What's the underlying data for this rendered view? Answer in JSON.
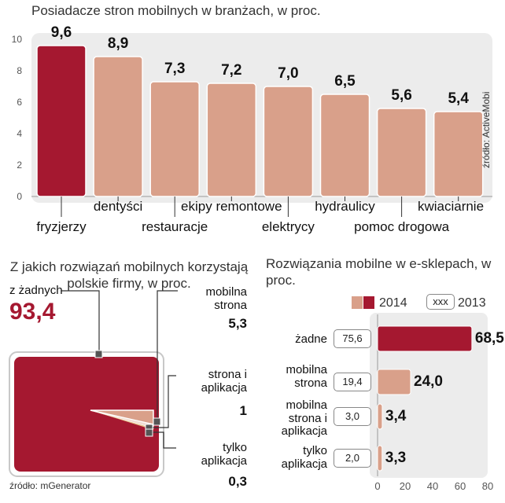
{
  "chart_data": [
    {
      "type": "bar",
      "title": "Posiadacze stron mobilnych w branżach, w proc.",
      "source": "źródło: ActiveMobi",
      "categories": [
        "fryzjerzy",
        "dentyści",
        "restauracje",
        "ekipy remontowe",
        "elektrycy",
        "hydraulicy",
        "pomoc drogowa",
        "kwiaciarnie"
      ],
      "values": [
        9.6,
        8.9,
        7.3,
        7.2,
        7.0,
        6.5,
        5.6,
        5.4
      ],
      "value_labels": [
        "9,6",
        "8,9",
        "7,3",
        "7,2",
        "7,0",
        "6,5",
        "5,6",
        "5,4"
      ],
      "yticks": [
        "0",
        "2",
        "4",
        "6",
        "8",
        "10"
      ],
      "ylim": [
        0,
        10
      ],
      "grid": false,
      "colors": {
        "highlight": "#a51830",
        "bar": "#d9a08a"
      }
    },
    {
      "type": "pie",
      "title": "Z jakich rozwiązań mobilnych korzystają polskie firmy, w proc.",
      "source": "źródło: mGenerator",
      "slices": [
        {
          "label": "z żadnych",
          "value": 93.4,
          "value_label": "93,4",
          "color": "#a51830"
        },
        {
          "label": "mobilna strona",
          "value": 5.3,
          "value_label": "5,3",
          "color": "#d9a08a"
        },
        {
          "label": "strona i aplikacja",
          "value": 1,
          "value_label": "1",
          "color": "#f1ddd2"
        },
        {
          "label": "tylko aplikacja",
          "value": 0.3,
          "value_label": "0,3",
          "color": "#e8c18a"
        }
      ]
    },
    {
      "type": "bar",
      "orientation": "horizontal",
      "title": "Rozwiązania mobilne w e-sklepach, w proc.",
      "categories": [
        "żadne",
        "mobilna strona",
        "mobilna strona i aplikacja",
        "tylko aplikacja"
      ],
      "series": [
        {
          "name": "2014",
          "values": [
            68.5,
            24.0,
            3.4,
            3.3
          ],
          "value_labels": [
            "68,5",
            "24,0",
            "3,4",
            "3,3"
          ]
        },
        {
          "name": "2013",
          "values": [
            75.6,
            19.4,
            3.0,
            2.0
          ],
          "value_labels": [
            "75,6",
            "19,4",
            "3,0",
            "2,0"
          ]
        }
      ],
      "xticks": [
        "0",
        "20",
        "40",
        "60",
        "80"
      ],
      "xlim": [
        0,
        80
      ],
      "legend": {
        "swatch_2013_text": "xxx",
        "placement": "top"
      },
      "colors": {
        "highlight": "#a51830",
        "bar": "#d9a08a"
      }
    }
  ]
}
